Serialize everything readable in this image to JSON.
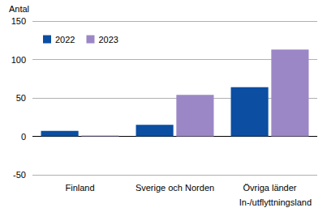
{
  "chart_data": {
    "type": "bar",
    "categories": [
      "Finland",
      "Sverige och Norden",
      "Övriga länder"
    ],
    "series": [
      {
        "name": "2022",
        "color": "#0b4ea2",
        "values": [
          7,
          15,
          64
        ]
      },
      {
        "name": "2023",
        "color": "#9b87c6",
        "values": [
          1,
          54,
          113
        ]
      }
    ],
    "y_label": "Antal",
    "x_label": "In-/utflyttningsland",
    "ylim": [
      -50,
      150
    ],
    "yticks": [
      -50,
      0,
      50,
      100,
      150
    ],
    "grid": true,
    "legend": "top-left"
  }
}
